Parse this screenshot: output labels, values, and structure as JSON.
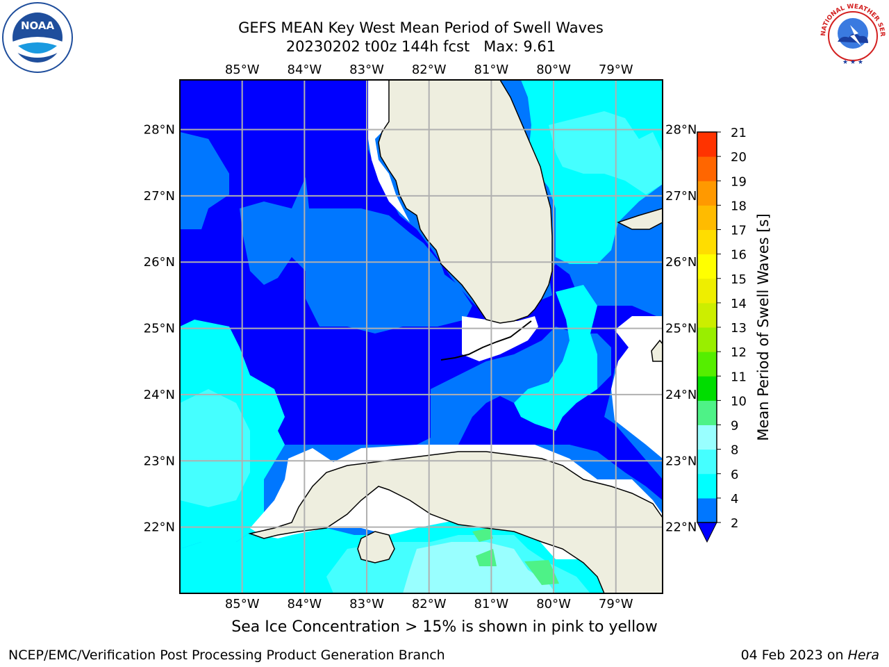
{
  "title": {
    "line1": "GEFS MEAN Key West Mean Period of Swell Waves",
    "line2": "20230202 t00z 144h fcst   Max: 9.61"
  },
  "map": {
    "lon_labels": [
      "85°W",
      "84°W",
      "83°W",
      "82°W",
      "81°W",
      "80°W",
      "79°W"
    ],
    "lat_labels": [
      "28°N",
      "27°N",
      "26°N",
      "25°N",
      "24°N",
      "23°N",
      "22°N"
    ],
    "lon_range": [
      -86,
      -78.25
    ],
    "lat_range": [
      21,
      28.75
    ],
    "colors": {
      "land": "#eeeedf",
      "ocean_low": "#0000ff",
      "ocean_mid": "#0077ff",
      "ocean_high": "#00ffff",
      "ocean_top": "#45ffff",
      "grid": "#b0b0b0"
    }
  },
  "colorbar": {
    "label": "Mean Period of Swell Waves [s]",
    "ticks": [
      "2",
      "4",
      "6",
      "8",
      "9",
      "10",
      "11",
      "12",
      "13",
      "14",
      "15",
      "16",
      "17",
      "18",
      "19",
      "20",
      "21"
    ],
    "colors": [
      "#0077ff",
      "#00ffff",
      "#45ffff",
      "#99ffff",
      "#4ef287",
      "#00dd00",
      "#55ee00",
      "#99ee00",
      "#ccee00",
      "#eeee00",
      "#ffff00",
      "#ffdd00",
      "#ffbb00",
      "#ff9900",
      "#ff6600",
      "#ff3300",
      "#ff0000"
    ],
    "extend_color": "#0000ff"
  },
  "caption": "Sea Ice Concentration > 15% is shown in pink to yellow",
  "footer": {
    "left": "NCEP/EMC/Verification Post Processing Product Generation Branch",
    "right_date": "04 Feb 2023 on ",
    "right_host": "Hera"
  },
  "logos": {
    "noaa_text": "NOAA",
    "nws_text": "NATIONAL WEATHER SERVICE"
  }
}
